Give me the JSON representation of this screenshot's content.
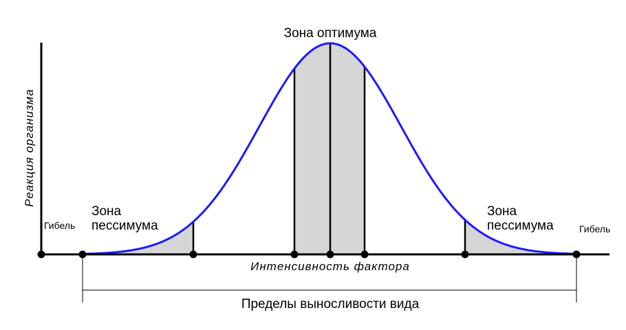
{
  "labels": {
    "optimum": "Зона оптимума",
    "y_axis": "Реакция организма",
    "x_axis": "Интенсивность фактора",
    "pessimum_left": [
      "Зона",
      "пессимума"
    ],
    "pessimum_right": [
      "Зона",
      "пессимума"
    ],
    "death_left": "Гибель",
    "death_right": "Гибель",
    "tolerance": "Пределы выносливости вида"
  }
}
